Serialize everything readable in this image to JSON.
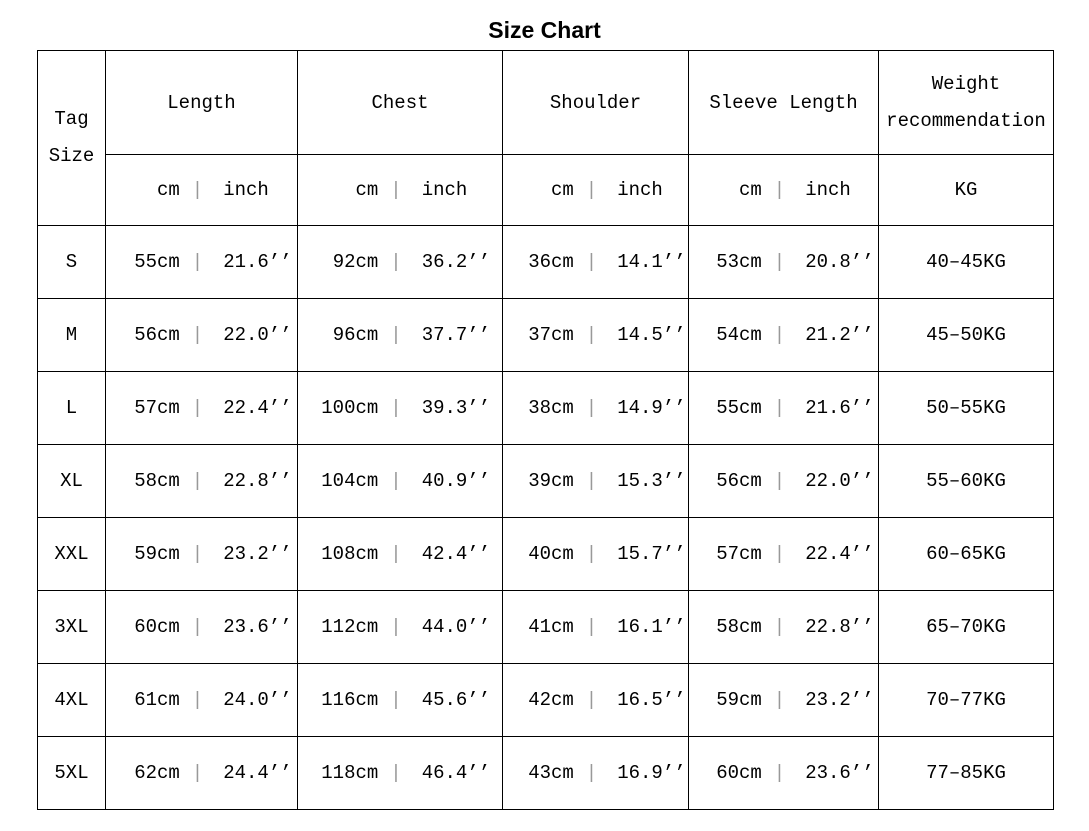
{
  "title": "Size Chart",
  "table": {
    "corner_header": {
      "line1": "Tag",
      "line2": "Size"
    },
    "group_headers": [
      "Length",
      "Chest",
      "Shoulder",
      "Sleeve Length"
    ],
    "weight_header": {
      "line1": "Weight",
      "line2": "recommendation"
    },
    "unit_cm": "cm",
    "unit_inch": "inch",
    "unit_weight": "KG",
    "separator": "|",
    "rows": [
      {
        "size": "S",
        "cells": [
          [
            "55cm",
            "21.6’’"
          ],
          [
            "92cm",
            "36.2’’"
          ],
          [
            "36cm",
            "14.1’’"
          ],
          [
            "53cm",
            "20.8’’"
          ]
        ],
        "weight": "40–45KG"
      },
      {
        "size": "M",
        "cells": [
          [
            "56cm",
            "22.0’’"
          ],
          [
            "96cm",
            "37.7’’"
          ],
          [
            "37cm",
            "14.5’’"
          ],
          [
            "54cm",
            "21.2’’"
          ]
        ],
        "weight": "45–50KG"
      },
      {
        "size": "L",
        "cells": [
          [
            "57cm",
            "22.4’’"
          ],
          [
            "100cm",
            "39.3’’"
          ],
          [
            "38cm",
            "14.9’’"
          ],
          [
            "55cm",
            "21.6’’"
          ]
        ],
        "weight": "50–55KG"
      },
      {
        "size": "XL",
        "cells": [
          [
            "58cm",
            "22.8’’"
          ],
          [
            "104cm",
            "40.9’’"
          ],
          [
            "39cm",
            "15.3’’"
          ],
          [
            "56cm",
            "22.0’’"
          ]
        ],
        "weight": "55–60KG"
      },
      {
        "size": "XXL",
        "cells": [
          [
            "59cm",
            "23.2’’"
          ],
          [
            "108cm",
            "42.4’’"
          ],
          [
            "40cm",
            "15.7’’"
          ],
          [
            "57cm",
            "22.4’’"
          ]
        ],
        "weight": "60–65KG"
      },
      {
        "size": "3XL",
        "cells": [
          [
            "60cm",
            "23.6’’"
          ],
          [
            "112cm",
            "44.0’’"
          ],
          [
            "41cm",
            "16.1’’"
          ],
          [
            "58cm",
            "22.8’’"
          ]
        ],
        "weight": "65–70KG"
      },
      {
        "size": "4XL",
        "cells": [
          [
            "61cm",
            "24.0’’"
          ],
          [
            "116cm",
            "45.6’’"
          ],
          [
            "42cm",
            "16.5’’"
          ],
          [
            "59cm",
            "23.2’’"
          ]
        ],
        "weight": "70–77KG"
      },
      {
        "size": "5XL",
        "cells": [
          [
            "62cm",
            "24.4’’"
          ],
          [
            "118cm",
            "46.4’’"
          ],
          [
            "43cm",
            "16.9’’"
          ],
          [
            "60cm",
            "23.6’’"
          ]
        ],
        "weight": "77–85KG"
      }
    ]
  },
  "chart_data": {
    "type": "table",
    "title": "Size Chart",
    "columns": [
      "Tag Size",
      "Length cm",
      "Length inch",
      "Chest cm",
      "Chest inch",
      "Shoulder cm",
      "Shoulder inch",
      "Sleeve Length cm",
      "Sleeve Length inch",
      "Weight recommendation KG"
    ],
    "rows": [
      [
        "S",
        55,
        21.6,
        92,
        36.2,
        36,
        14.1,
        53,
        20.8,
        "40-45"
      ],
      [
        "M",
        56,
        22.0,
        96,
        37.7,
        37,
        14.5,
        54,
        21.2,
        "45-50"
      ],
      [
        "L",
        57,
        22.4,
        100,
        39.3,
        38,
        14.9,
        55,
        21.6,
        "50-55"
      ],
      [
        "XL",
        58,
        22.8,
        104,
        40.9,
        39,
        15.3,
        56,
        22.0,
        "55-60"
      ],
      [
        "XXL",
        59,
        23.2,
        108,
        42.4,
        40,
        15.7,
        57,
        22.4,
        "60-65"
      ],
      [
        "3XL",
        60,
        23.6,
        112,
        44.0,
        41,
        16.1,
        58,
        22.8,
        "65-70"
      ],
      [
        "4XL",
        61,
        24.0,
        116,
        45.6,
        42,
        16.5,
        59,
        23.2,
        "70-77"
      ],
      [
        "5XL",
        62,
        24.4,
        118,
        46.4,
        43,
        16.9,
        60,
        23.6,
        "77-85"
      ]
    ]
  },
  "colors": {
    "background": "#ffffff",
    "text": "#000000",
    "border": "#000000",
    "separator": "#999999"
  }
}
